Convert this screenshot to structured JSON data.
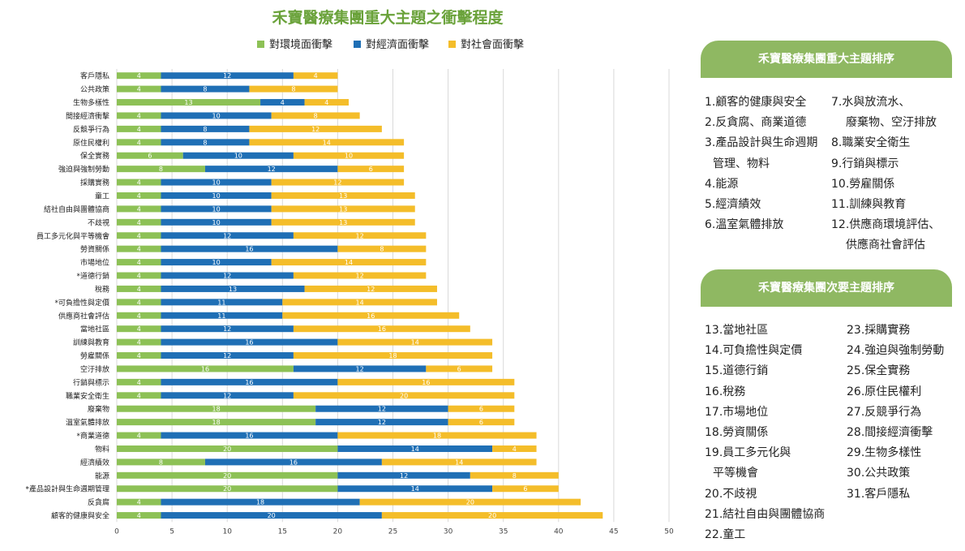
{
  "chart_data": {
    "type": "bar",
    "orientation": "horizontal",
    "stacked": true,
    "title": "禾寶醫療集團重大主題之衝擊程度",
    "xlim": [
      0,
      50
    ],
    "xticks": [
      "0",
      "5",
      "10",
      "15",
      "20",
      "25",
      "30",
      "35",
      "40",
      "45",
      "50"
    ],
    "grid": true,
    "legend_position": "top",
    "colors": [
      "#8dc156",
      "#1f6fb5",
      "#f4bd2a"
    ],
    "categories": [
      "客戶隱私",
      "公共政策",
      "生物多樣性",
      "間接經濟衝擊",
      "反競爭行為",
      "原住民權利",
      "保全實務",
      "強迫與強制勞動",
      "採購實務",
      "童工",
      "結社自由與團體協商",
      "不歧視",
      "員工多元化與平等機會",
      "勞資關係",
      "市場地位",
      "*道德行銷",
      "稅務",
      "*可負擔性與定價",
      "供應商社會評估",
      "當地社區",
      "訓練與教育",
      "勞雇關係",
      "空汙排放",
      "行銷與標示",
      "職業安全衛生",
      "廢棄物",
      "溫室氣體排放",
      "*商業道德",
      "物料",
      "經濟績效",
      "能源",
      "*產品設計與生命週期管理",
      "反貪腐",
      "顧客的健康與安全"
    ],
    "series": [
      {
        "name": "對環境面衝擊",
        "values": [
          4,
          4,
          13,
          4,
          4,
          4,
          6,
          8,
          4,
          4,
          4,
          4,
          4,
          4,
          4,
          4,
          4,
          4,
          4,
          4,
          4,
          4,
          16,
          4,
          4,
          18,
          18,
          4,
          20,
          8,
          20,
          20,
          4,
          4
        ]
      },
      {
        "name": "對經濟面衝擊",
        "values": [
          12,
          8,
          4,
          10,
          8,
          8,
          10,
          12,
          10,
          10,
          10,
          10,
          12,
          16,
          10,
          12,
          13,
          11,
          11,
          12,
          16,
          12,
          12,
          16,
          12,
          12,
          12,
          16,
          14,
          16,
          12,
          14,
          18,
          20
        ]
      },
      {
        "name": "對社會面衝擊",
        "values": [
          4,
          8,
          4,
          8,
          12,
          14,
          10,
          6,
          12,
          13,
          13,
          13,
          12,
          8,
          14,
          12,
          12,
          14,
          16,
          16,
          14,
          18,
          6,
          16,
          20,
          6,
          6,
          18,
          4,
          14,
          8,
          6,
          20,
          20
        ]
      }
    ]
  },
  "panels": [
    {
      "header": "禾寶醫療集團重大主題排序",
      "items": [
        "1.顧客的健康與安全",
        "2.反貪腐、商業道德",
        "3.產品設計與生命週期",
        "管理、物料",
        "4.能源",
        "5.經濟績效",
        "6.溫室氣體排放",
        "7.水與放流水、",
        "廢棄物、空汙排放",
        "8.職業安全衛生",
        "9.行銷與標示",
        "10.勞雇關係",
        "11.訓練與教育",
        "12.供應商環境評估、",
        "供應商社會評估"
      ]
    },
    {
      "header": "禾寶醫療集團次要主題排序",
      "items": [
        "13.當地社區",
        "14.可負擔性與定價",
        "15.道德行銷",
        "16.稅務",
        "17.市場地位",
        "18.勞資關係",
        "19.員工多元化與",
        "平等機會",
        "20.不歧視",
        "21.結社自由與團體協商",
        "22.童工",
        "23.採購實務",
        "24.強迫與強制勞動",
        "25.保全實務",
        "26.原住民權利",
        "27.反競爭行為",
        "28.間接經濟衝擊",
        "29.生物多樣性",
        "30.公共政策",
        "31.客戶隱私"
      ]
    }
  ]
}
